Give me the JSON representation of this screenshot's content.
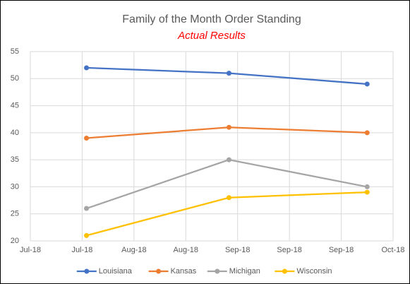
{
  "chart_data": {
    "type": "line",
    "title": "Family of the Month Order Standing",
    "subtitle": "Actual Results",
    "x": [
      43313,
      43346,
      43378
    ],
    "series": [
      {
        "name": "Louisiana",
        "color": "#4472c4",
        "values": [
          52,
          51,
          49
        ]
      },
      {
        "name": "Kansas",
        "color": "#ed7d31",
        "values": [
          39,
          41,
          40
        ]
      },
      {
        "name": "Michigan",
        "color": "#a5a5a5",
        "values": [
          26,
          35,
          30
        ]
      },
      {
        "name": "Wisconsin",
        "color": "#ffc000",
        "values": [
          21,
          28,
          29
        ]
      }
    ],
    "xlim": [
      43300,
      43384
    ],
    "xticks": [
      {
        "value": 43300,
        "label": "Jul-18"
      },
      {
        "value": 43312,
        "label": "Jul-18"
      },
      {
        "value": 43324,
        "label": "Aug-18"
      },
      {
        "value": 43336,
        "label": "Aug-18"
      },
      {
        "value": 43348,
        "label": "Sep-18"
      },
      {
        "value": 43360,
        "label": "Sep-18"
      },
      {
        "value": 43372,
        "label": "Sep-18"
      },
      {
        "value": 43384,
        "label": "Oct-18"
      }
    ],
    "ylim": [
      20,
      55
    ],
    "yticks": [
      20,
      25,
      30,
      35,
      40,
      45,
      50,
      55
    ],
    "grid": true,
    "legend": "bottom"
  }
}
